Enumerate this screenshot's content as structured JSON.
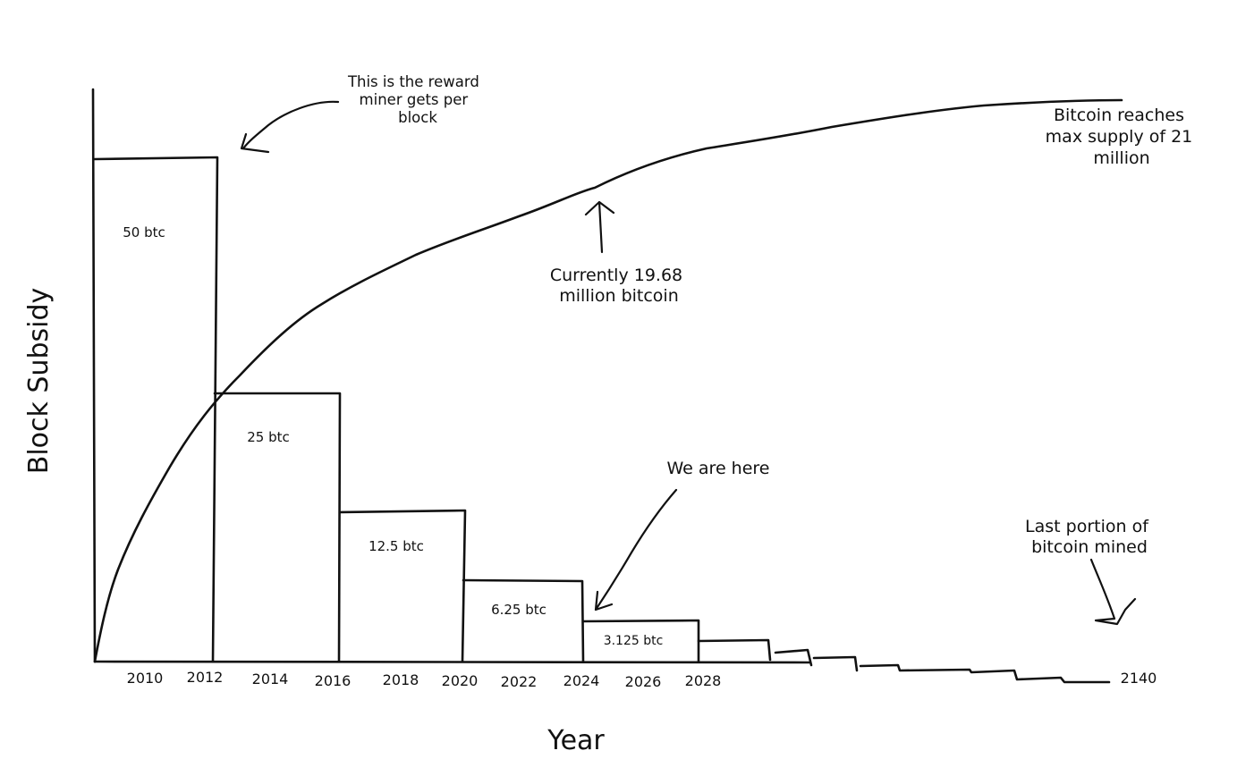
{
  "chart_data": {
    "type": "bar",
    "title": "",
    "ylabel": "Block Subsidy",
    "xlabel": "Year",
    "categories": [
      "2008-2012",
      "2012-2016",
      "2016-2020",
      "2020-2024",
      "2024-2028"
    ],
    "values": [
      50,
      25,
      12.5,
      6.25,
      3.125
    ],
    "value_labels": [
      "50 btc",
      "25 btc",
      "12.5 btc",
      "6.25 btc",
      "3.125 btc"
    ],
    "x_ticks": [
      "2010",
      "2012",
      "2014",
      "2016",
      "2018",
      "2020",
      "2022",
      "2024",
      "2026",
      "2028",
      "2140"
    ],
    "tail_note": "subsidy keeps halving in smaller and smaller steps until 2140",
    "supply_curve": {
      "description": "cumulative bitcoin supply approaching 21 million",
      "current_million": 19.68,
      "max_million": 21
    },
    "annotations": {
      "reward": [
        "This is the reward",
        "miner gets per",
        "block"
      ],
      "current": [
        "Currently 19.68",
        "million bitcoin"
      ],
      "here": [
        "We are here"
      ],
      "max": [
        "Bitcoin reaches",
        "max supply of 21",
        "million"
      ],
      "last": [
        "Last portion of",
        "bitcoin mined"
      ]
    }
  }
}
